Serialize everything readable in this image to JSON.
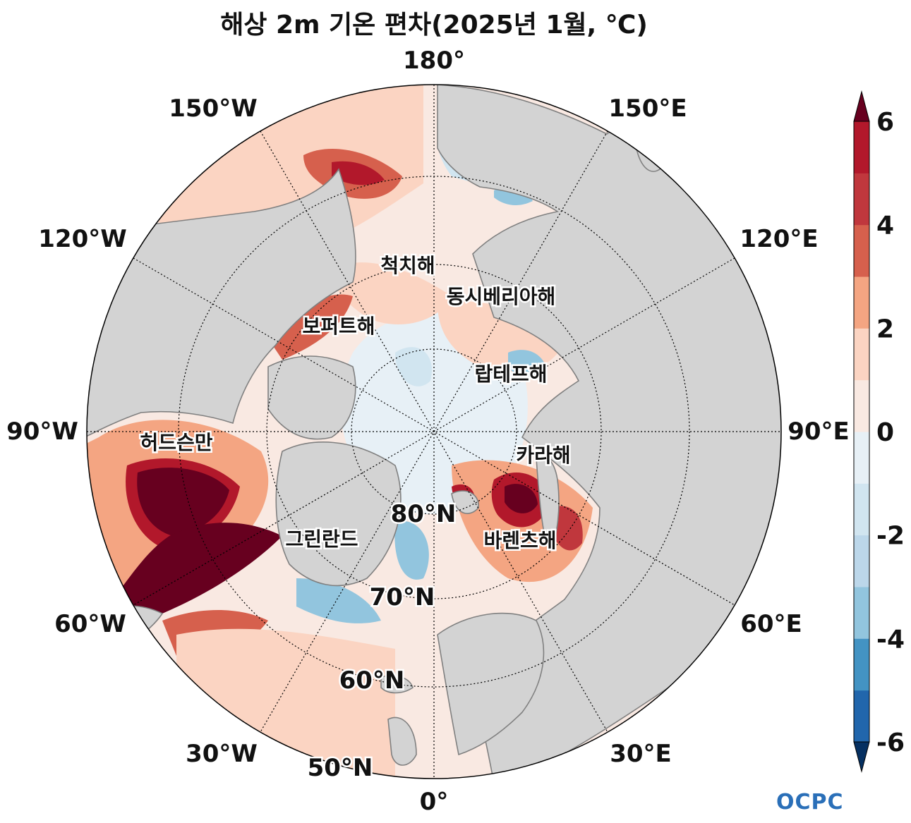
{
  "title": "해상 2m 기온 편차(2025년 1월, ℃)",
  "longitude_labels": {
    "lon_0": "0°",
    "lon_30e": "30°E",
    "lon_60e": "60°E",
    "lon_90e": "90°E",
    "lon_120e": "120°E",
    "lon_150e": "150°E",
    "lon_180": "180°",
    "lon_150w": "150°W",
    "lon_120w": "120°W",
    "lon_90w": "90°W",
    "lon_60w": "60°W",
    "lon_30w": "30°W"
  },
  "latitude_labels": {
    "lat80": "80°N",
    "lat70": "70°N",
    "lat60": "60°N",
    "lat50": "50°N"
  },
  "sea_labels": {
    "chukchi": "척치해",
    "east_siberian": "동시베리아해",
    "beaufort": "보퍼트해",
    "laptev": "랍테프해",
    "hudson": "허드슨만",
    "kara": "카라해",
    "greenland": "그린란드",
    "barents": "바렌츠해"
  },
  "colorbar": {
    "ticks": [
      "6",
      "4",
      "2",
      "0",
      "-2",
      "-4",
      "-6"
    ],
    "colors": [
      "#053061",
      "#2166ac",
      "#4393c3",
      "#92c5de",
      "#bcd7ea",
      "#d1e5f0",
      "#e7f0f6",
      "#f9e9e2",
      "#fbd4c2",
      "#f4a582",
      "#d6604d",
      "#c0373d",
      "#b2182b",
      "#67001f"
    ]
  },
  "colors": {
    "land": "#d3d3d3",
    "coast": "#808080",
    "ocean_base": "#f9e9e2"
  },
  "logo": "OCPC"
}
